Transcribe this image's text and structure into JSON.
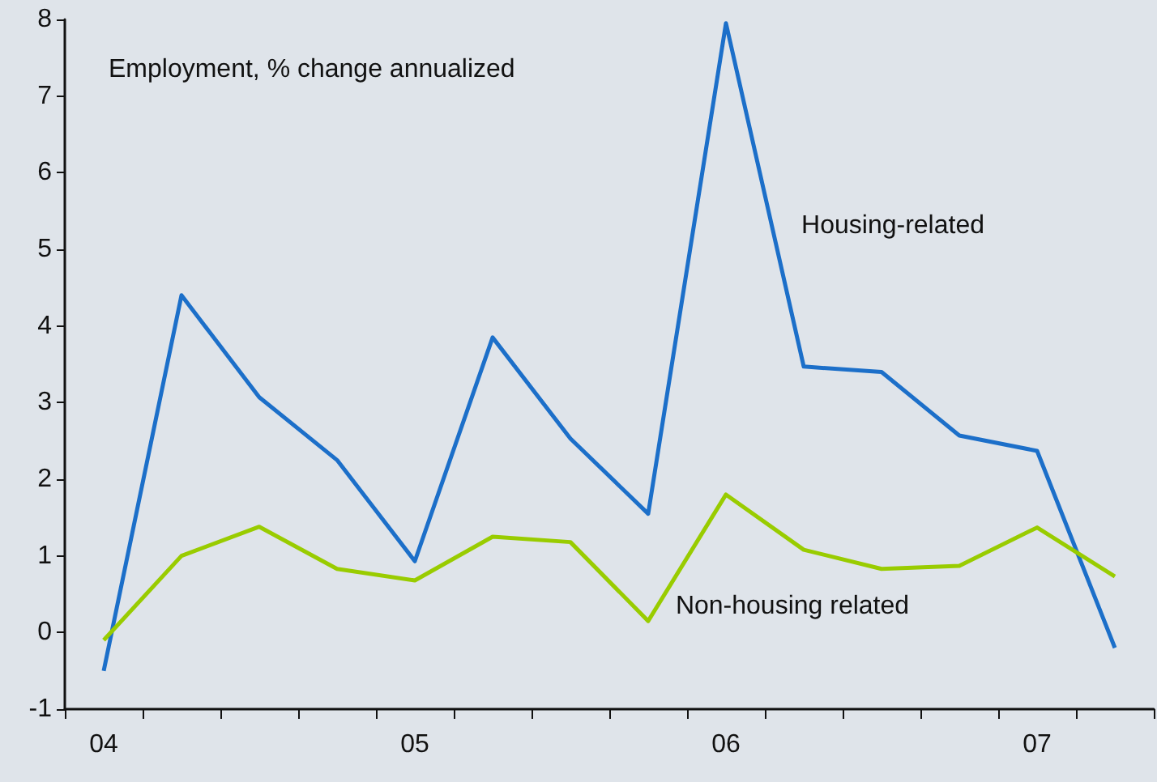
{
  "chart_data": {
    "type": "line",
    "title": "Employment, % change annualized",
    "categories": [
      "04",
      null,
      null,
      null,
      "05",
      null,
      null,
      null,
      "06",
      null,
      null,
      null,
      "07",
      null
    ],
    "series": [
      {
        "name": "Housing-related",
        "color": "#1c6fc9",
        "values": [
          -0.5,
          4.4,
          3.07,
          2.25,
          0.93,
          3.85,
          2.53,
          1.55,
          7.95,
          3.47,
          3.4,
          2.57,
          2.37,
          -0.2
        ]
      },
      {
        "name": "Non-housing related",
        "color": "#99cc00",
        "values": [
          -0.1,
          1.0,
          1.38,
          0.83,
          0.68,
          1.25,
          1.18,
          0.15,
          1.8,
          1.08,
          0.83,
          0.87,
          1.37,
          0.73
        ]
      }
    ],
    "ylim": [
      -1,
      8
    ],
    "yticks": [
      -1,
      0,
      1,
      2,
      3,
      4,
      5,
      6,
      7,
      8
    ],
    "grid": false,
    "legend": false,
    "marker": "none",
    "line_style": "solid"
  }
}
